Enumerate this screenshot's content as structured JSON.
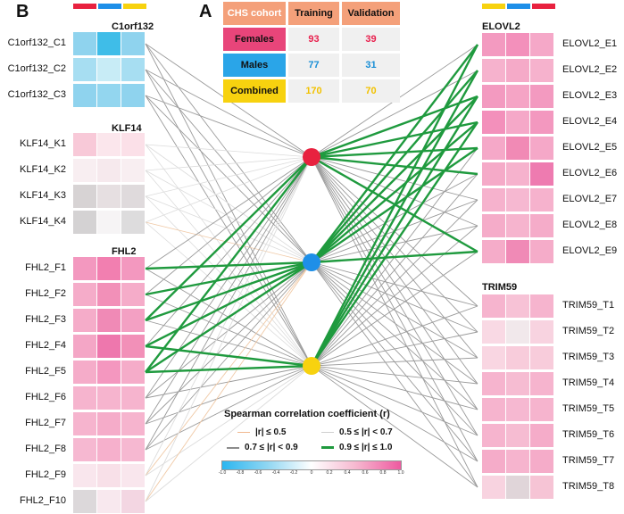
{
  "panels": {
    "b_label": "B",
    "a_label": "A"
  },
  "cohort_table": {
    "headers": [
      "CHS cohort",
      "Training",
      "Validation"
    ],
    "rows": [
      {
        "label": "Females",
        "training": "93",
        "validation": "39",
        "color": "#e8457a",
        "text_color": "#e8214e"
      },
      {
        "label": "Males",
        "training": "77",
        "validation": "31",
        "color": "#2aa5e8",
        "text_color": "#1a8fd6"
      },
      {
        "label": "Combined",
        "training": "170",
        "validation": "70",
        "color": "#f7d20f",
        "text_color": "#f2c200"
      }
    ]
  },
  "nodes": [
    {
      "name": "females",
      "color": "#e8213f"
    },
    {
      "name": "males",
      "color": "#1e8fe8"
    },
    {
      "name": "combined",
      "color": "#f7d20f"
    }
  ],
  "top_bar_colors": {
    "left": [
      "#e8213f",
      "#1e8fe8",
      "#f7d20f"
    ],
    "right": [
      "#f7d20f",
      "#1e8fe8",
      "#e8213f"
    ]
  },
  "left_groups": [
    {
      "title": "C1orf132",
      "rows": [
        {
          "label": "C1orf132_C1",
          "cells": [
            "#8fd3ee",
            "#3fbde8",
            "#8fd3ee"
          ]
        },
        {
          "label": "C1orf132_C2",
          "cells": [
            "#a7def2",
            "#c8ecf6",
            "#a7def2"
          ]
        },
        {
          "label": "C1orf132_C3",
          "cells": [
            "#8fd3ee",
            "#93d6ef",
            "#8fd3ee"
          ]
        }
      ]
    },
    {
      "title": "KLF14",
      "rows": [
        {
          "label": "KLF14_K1",
          "cells": [
            "#f8c9d8",
            "#fbe6ec",
            "#fbe0e8"
          ]
        },
        {
          "label": "KLF14_K2",
          "cells": [
            "#f8eef1",
            "#f6e9ed",
            "#f8eef1"
          ]
        },
        {
          "label": "KLF14_K3",
          "cells": [
            "#d7d3d4",
            "#e6dfe1",
            "#dfdadc"
          ]
        },
        {
          "label": "KLF14_K4",
          "cells": [
            "#d4d2d3",
            "#f6f4f5",
            "#dddcdd"
          ]
        }
      ]
    },
    {
      "title": "FHL2",
      "rows": [
        {
          "label": "FHL2_F1",
          "cells": [
            "#f398bf",
            "#f27fb0",
            "#f398bf"
          ]
        },
        {
          "label": "FHL2_F2",
          "cells": [
            "#f5acc9",
            "#f290b8",
            "#f5acc9"
          ]
        },
        {
          "label": "FHL2_F3",
          "cells": [
            "#f5acc9",
            "#f08ab6",
            "#f3a0c3"
          ]
        },
        {
          "label": "FHL2_F4",
          "cells": [
            "#f4a6c6",
            "#ee77ad",
            "#f290b8"
          ]
        },
        {
          "label": "FHL2_F5",
          "cells": [
            "#f5acc9",
            "#f497bf",
            "#f5acc9"
          ]
        },
        {
          "label": "FHL2_F6",
          "cells": [
            "#f6b4ce",
            "#f6b4ce",
            "#f6b4ce"
          ]
        },
        {
          "label": "FHL2_F7",
          "cells": [
            "#f6b4ce",
            "#f5acc9",
            "#f6b4ce"
          ]
        },
        {
          "label": "FHL2_F8",
          "cells": [
            "#f6b8d1",
            "#f6b0cc",
            "#f6b8d1"
          ]
        },
        {
          "label": "FHL2_F9",
          "cells": [
            "#f9e6ed",
            "#f8e0e8",
            "#f9e6ed"
          ]
        },
        {
          "label": "FHL2_F10",
          "cells": [
            "#dcd8da",
            "#f8e8ee",
            "#f3d6e2"
          ]
        }
      ]
    }
  ],
  "right_groups": [
    {
      "title": "ELOVL2",
      "rows": [
        {
          "label": "ELOVL2_E1",
          "cells": [
            "#f39ac0",
            "#f390bb",
            "#f5a8c8"
          ]
        },
        {
          "label": "ELOVL2_E2",
          "cells": [
            "#f6b2cd",
            "#f5aac8",
            "#f6b2cd"
          ]
        },
        {
          "label": "ELOVL2_E3",
          "cells": [
            "#f39ac0",
            "#f5a4c5",
            "#f39ac0"
          ]
        },
        {
          "label": "ELOVL2_E4",
          "cells": [
            "#f390bb",
            "#f5a8c8",
            "#f398bf"
          ]
        },
        {
          "label": "ELOVL2_E5",
          "cells": [
            "#f5a8c8",
            "#f18ab5",
            "#f5a8c8"
          ]
        },
        {
          "label": "ELOVL2_E6",
          "cells": [
            "#f5aac8",
            "#f6b2cd",
            "#ee7bb0"
          ]
        },
        {
          "label": "ELOVL2_E7",
          "cells": [
            "#f6b2cd",
            "#f6b8d1",
            "#f6b2cd"
          ]
        },
        {
          "label": "ELOVL2_E8",
          "cells": [
            "#f5acc9",
            "#f6b4ce",
            "#f5acc9"
          ]
        },
        {
          "label": "ELOVL2_E9",
          "cells": [
            "#f5acc9",
            "#f08ab6",
            "#f5acc9"
          ]
        }
      ]
    },
    {
      "title": "TRIM59",
      "rows": [
        {
          "label": "TRIM59_T1",
          "cells": [
            "#f6b4ce",
            "#f7c2d6",
            "#f6b4ce"
          ]
        },
        {
          "label": "TRIM59_T2",
          "cells": [
            "#f9d9e4",
            "#f1e8eb",
            "#f8d3e0"
          ]
        },
        {
          "label": "TRIM59_T3",
          "cells": [
            "#f9d6e2",
            "#f8ccdb",
            "#f8ccdb"
          ]
        },
        {
          "label": "TRIM59_T4",
          "cells": [
            "#f6b4ce",
            "#f6bcd2",
            "#f6b4ce"
          ]
        },
        {
          "label": "TRIM59_T5",
          "cells": [
            "#f6b4ce",
            "#f6b8d1",
            "#f6b4ce"
          ]
        },
        {
          "label": "TRIM59_T6",
          "cells": [
            "#f6b4ce",
            "#f6bcd2",
            "#f5acc9"
          ]
        },
        {
          "label": "TRIM59_T7",
          "cells": [
            "#f5acc9",
            "#f6b4ce",
            "#f5acc9"
          ]
        },
        {
          "label": "TRIM59_T8",
          "cells": [
            "#f8d3e0",
            "#e0d5d9",
            "#f6c4d5"
          ]
        }
      ]
    }
  ],
  "legend": {
    "title": "Spearman correlation coefficient (r)",
    "items": [
      {
        "label": "|r| ≤ 0.5",
        "color": "#f0b88f"
      },
      {
        "label": "0.5 ≤ |r| < 0.7",
        "color": "#cfcfcf"
      },
      {
        "label": "0.7 ≤ |r| < 0.9",
        "color": "#8c8c8c"
      },
      {
        "label": "0.9 ≤ |r| ≤ 1.0",
        "color": "#1f9a3e"
      }
    ],
    "colorbar_ticks": [
      "-1.0",
      "-0.8",
      "-0.6",
      "-0.4",
      "-0.2",
      "0",
      "0.2",
      "0.4",
      "0.6",
      "0.8",
      "1.0"
    ]
  }
}
